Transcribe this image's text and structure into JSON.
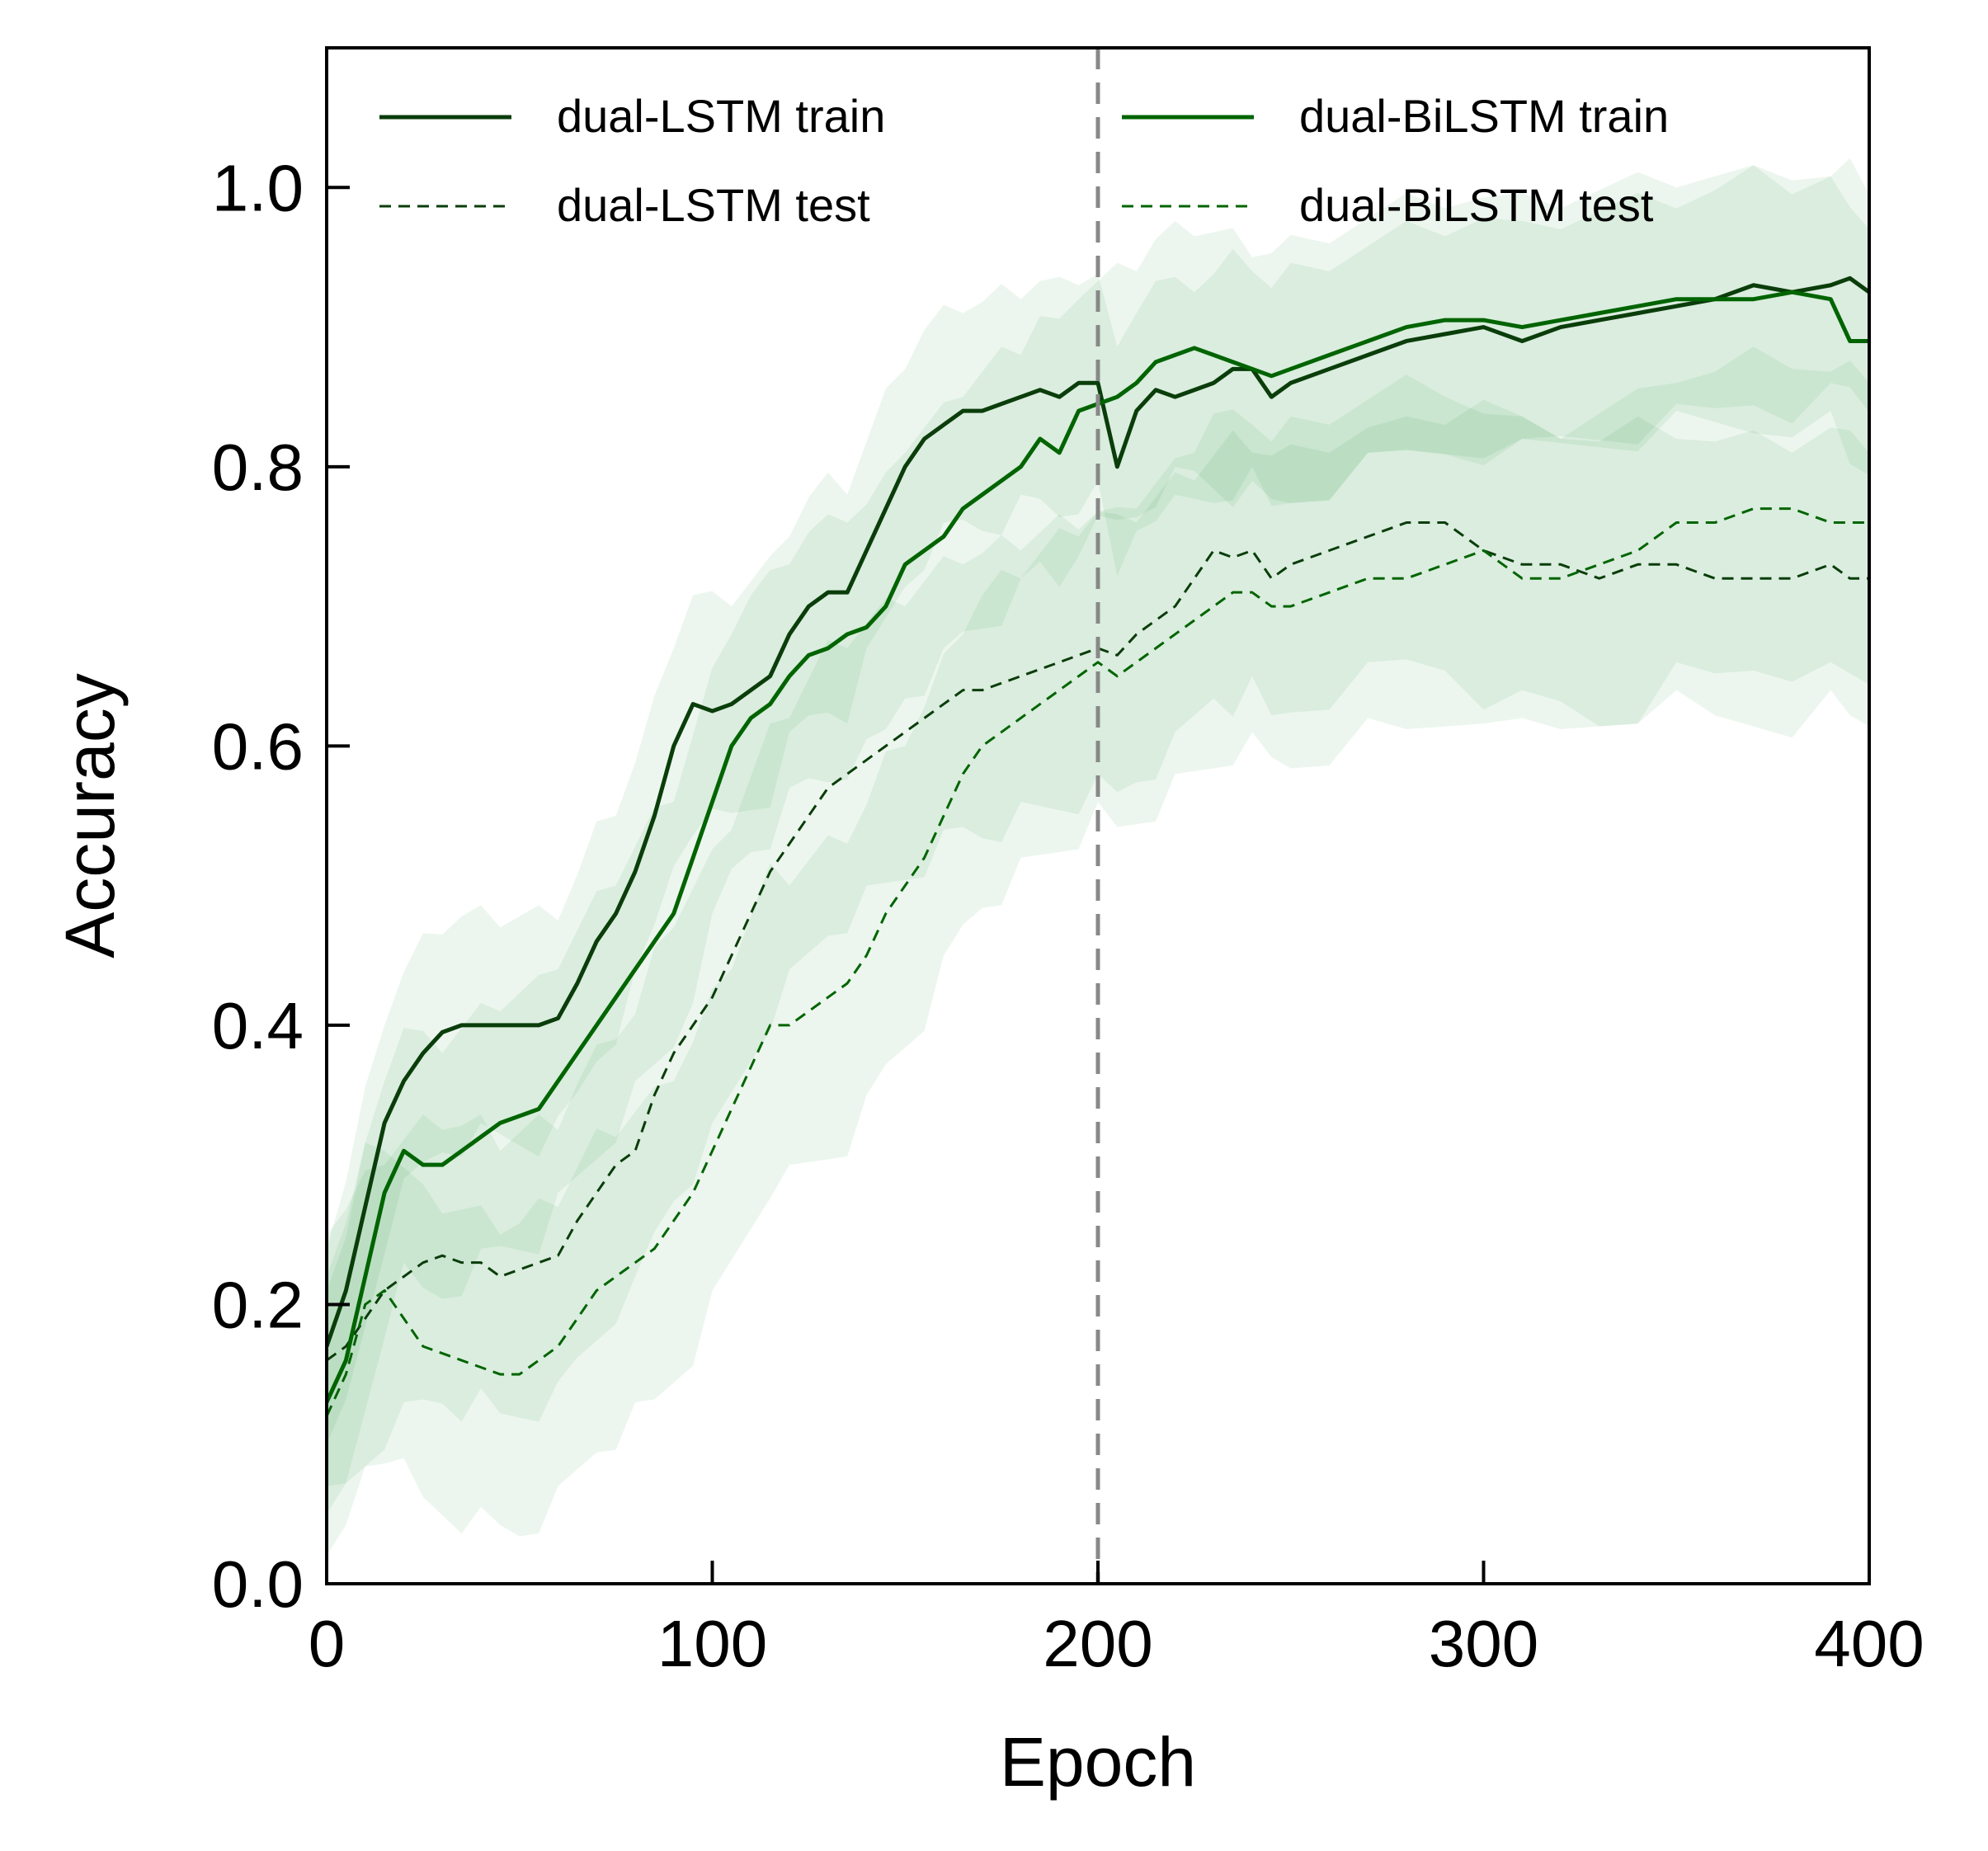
{
  "chart_data": {
    "type": "line",
    "title": "",
    "xlabel": "Epoch",
    "ylabel": "Accuracy",
    "xlim": [
      0,
      400
    ],
    "ylim": [
      0,
      1.1
    ],
    "xticks": [
      0,
      100,
      200,
      300,
      400
    ],
    "xtick_labels": [
      "0",
      "100",
      "200",
      "300",
      "400"
    ],
    "yticks": [
      0.0,
      0.2,
      0.4,
      0.6,
      0.8,
      1.0
    ],
    "ytick_labels": [
      "0.0",
      "0.2",
      "0.4",
      "0.6",
      "0.8",
      "1.0"
    ],
    "grid": false,
    "legend_position": "top",
    "vertical_reference_line": {
      "x": 200,
      "style": "dashed",
      "color": "#888888"
    },
    "colors": {
      "lstm": "#0a3d0a",
      "bilstm": "#006400",
      "band": "#2e9e3e"
    },
    "series": [
      {
        "name": "dual-LSTM train",
        "style": "solid",
        "color": "#0a3d0a",
        "x": [
          0,
          5,
          10,
          15,
          20,
          25,
          30,
          35,
          40,
          45,
          50,
          55,
          60,
          65,
          70,
          75,
          80,
          85,
          90,
          95,
          100,
          105,
          110,
          115,
          120,
          125,
          130,
          135,
          140,
          145,
          150,
          155,
          160,
          165,
          170,
          175,
          180,
          185,
          190,
          195,
          200,
          205,
          210,
          215,
          220,
          225,
          230,
          235,
          240,
          245,
          250,
          260,
          270,
          280,
          290,
          300,
          310,
          320,
          330,
          340,
          350,
          360,
          370,
          380,
          390,
          395,
          400
        ],
        "y": [
          0.17,
          0.21,
          0.27,
          0.33,
          0.36,
          0.38,
          0.395,
          0.4,
          0.4,
          0.4,
          0.4,
          0.4,
          0.405,
          0.43,
          0.46,
          0.48,
          0.51,
          0.55,
          0.6,
          0.63,
          0.625,
          0.63,
          0.64,
          0.65,
          0.68,
          0.7,
          0.71,
          0.71,
          0.74,
          0.77,
          0.8,
          0.82,
          0.83,
          0.84,
          0.84,
          0.845,
          0.85,
          0.855,
          0.85,
          0.86,
          0.86,
          0.8,
          0.84,
          0.855,
          0.85,
          0.855,
          0.86,
          0.87,
          0.87,
          0.85,
          0.86,
          0.87,
          0.88,
          0.89,
          0.895,
          0.9,
          0.89,
          0.9,
          0.905,
          0.91,
          0.915,
          0.92,
          0.93,
          0.925,
          0.93,
          0.935,
          0.925
        ]
      },
      {
        "name": "dual-LSTM test",
        "style": "dashed",
        "color": "#0a3d0a",
        "x": [
          0,
          5,
          10,
          15,
          20,
          25,
          30,
          35,
          40,
          45,
          50,
          55,
          60,
          65,
          70,
          75,
          80,
          85,
          90,
          95,
          100,
          105,
          110,
          115,
          120,
          125,
          130,
          135,
          140,
          145,
          150,
          155,
          160,
          165,
          170,
          175,
          180,
          185,
          190,
          195,
          200,
          205,
          210,
          215,
          220,
          225,
          230,
          235,
          240,
          245,
          250,
          260,
          270,
          280,
          290,
          300,
          310,
          320,
          330,
          340,
          350,
          360,
          370,
          380,
          390,
          395,
          400
        ],
        "y": [
          0.16,
          0.17,
          0.19,
          0.21,
          0.22,
          0.23,
          0.235,
          0.23,
          0.23,
          0.22,
          0.225,
          0.23,
          0.235,
          0.26,
          0.28,
          0.3,
          0.31,
          0.35,
          0.38,
          0.4,
          0.42,
          0.45,
          0.48,
          0.51,
          0.53,
          0.55,
          0.57,
          0.58,
          0.59,
          0.6,
          0.61,
          0.62,
          0.63,
          0.64,
          0.64,
          0.645,
          0.65,
          0.655,
          0.66,
          0.665,
          0.67,
          0.665,
          0.68,
          0.69,
          0.7,
          0.72,
          0.74,
          0.735,
          0.74,
          0.72,
          0.73,
          0.74,
          0.75,
          0.76,
          0.76,
          0.74,
          0.73,
          0.73,
          0.72,
          0.73,
          0.73,
          0.72,
          0.72,
          0.72,
          0.73,
          0.72,
          0.72
        ]
      },
      {
        "name": "dual-BiLSTM train",
        "style": "solid",
        "color": "#006400",
        "x": [
          0,
          5,
          10,
          15,
          20,
          25,
          30,
          35,
          40,
          45,
          50,
          55,
          60,
          65,
          70,
          75,
          80,
          85,
          90,
          95,
          100,
          105,
          110,
          115,
          120,
          125,
          130,
          135,
          140,
          145,
          150,
          155,
          160,
          165,
          170,
          175,
          180,
          185,
          190,
          195,
          200,
          205,
          210,
          215,
          220,
          225,
          230,
          235,
          240,
          245,
          250,
          260,
          270,
          280,
          290,
          300,
          310,
          320,
          330,
          340,
          350,
          360,
          370,
          380,
          390,
          395,
          400
        ],
        "y": [
          0.13,
          0.16,
          0.22,
          0.28,
          0.31,
          0.3,
          0.3,
          0.31,
          0.32,
          0.33,
          0.335,
          0.34,
          0.36,
          0.38,
          0.4,
          0.42,
          0.44,
          0.46,
          0.48,
          0.52,
          0.56,
          0.6,
          0.62,
          0.63,
          0.65,
          0.665,
          0.67,
          0.68,
          0.685,
          0.7,
          0.73,
          0.74,
          0.75,
          0.77,
          0.78,
          0.79,
          0.8,
          0.82,
          0.81,
          0.84,
          0.845,
          0.85,
          0.86,
          0.875,
          0.88,
          0.885,
          0.88,
          0.875,
          0.87,
          0.865,
          0.87,
          0.88,
          0.89,
          0.9,
          0.905,
          0.905,
          0.9,
          0.905,
          0.91,
          0.915,
          0.92,
          0.92,
          0.92,
          0.925,
          0.92,
          0.89,
          0.89
        ]
      },
      {
        "name": "dual-BiLSTM test",
        "style": "dashed",
        "color": "#006400",
        "x": [
          0,
          5,
          10,
          15,
          20,
          25,
          30,
          35,
          40,
          45,
          50,
          55,
          60,
          65,
          70,
          75,
          80,
          85,
          90,
          95,
          100,
          105,
          110,
          115,
          120,
          125,
          130,
          135,
          140,
          145,
          150,
          155,
          160,
          165,
          170,
          175,
          180,
          185,
          190,
          195,
          200,
          205,
          210,
          215,
          220,
          225,
          230,
          235,
          240,
          245,
          250,
          260,
          270,
          280,
          290,
          300,
          310,
          320,
          330,
          340,
          350,
          360,
          370,
          380,
          390,
          395,
          400
        ],
        "y": [
          0.12,
          0.15,
          0.2,
          0.21,
          0.19,
          0.17,
          0.165,
          0.16,
          0.155,
          0.15,
          0.15,
          0.16,
          0.17,
          0.19,
          0.21,
          0.22,
          0.23,
          0.24,
          0.26,
          0.28,
          0.31,
          0.34,
          0.37,
          0.4,
          0.4,
          0.41,
          0.42,
          0.43,
          0.45,
          0.48,
          0.5,
          0.52,
          0.55,
          0.58,
          0.6,
          0.61,
          0.62,
          0.63,
          0.64,
          0.65,
          0.66,
          0.65,
          0.66,
          0.67,
          0.68,
          0.69,
          0.7,
          0.71,
          0.71,
          0.7,
          0.7,
          0.71,
          0.72,
          0.72,
          0.73,
          0.74,
          0.72,
          0.72,
          0.73,
          0.74,
          0.76,
          0.76,
          0.77,
          0.77,
          0.76,
          0.76,
          0.76
        ]
      }
    ]
  }
}
